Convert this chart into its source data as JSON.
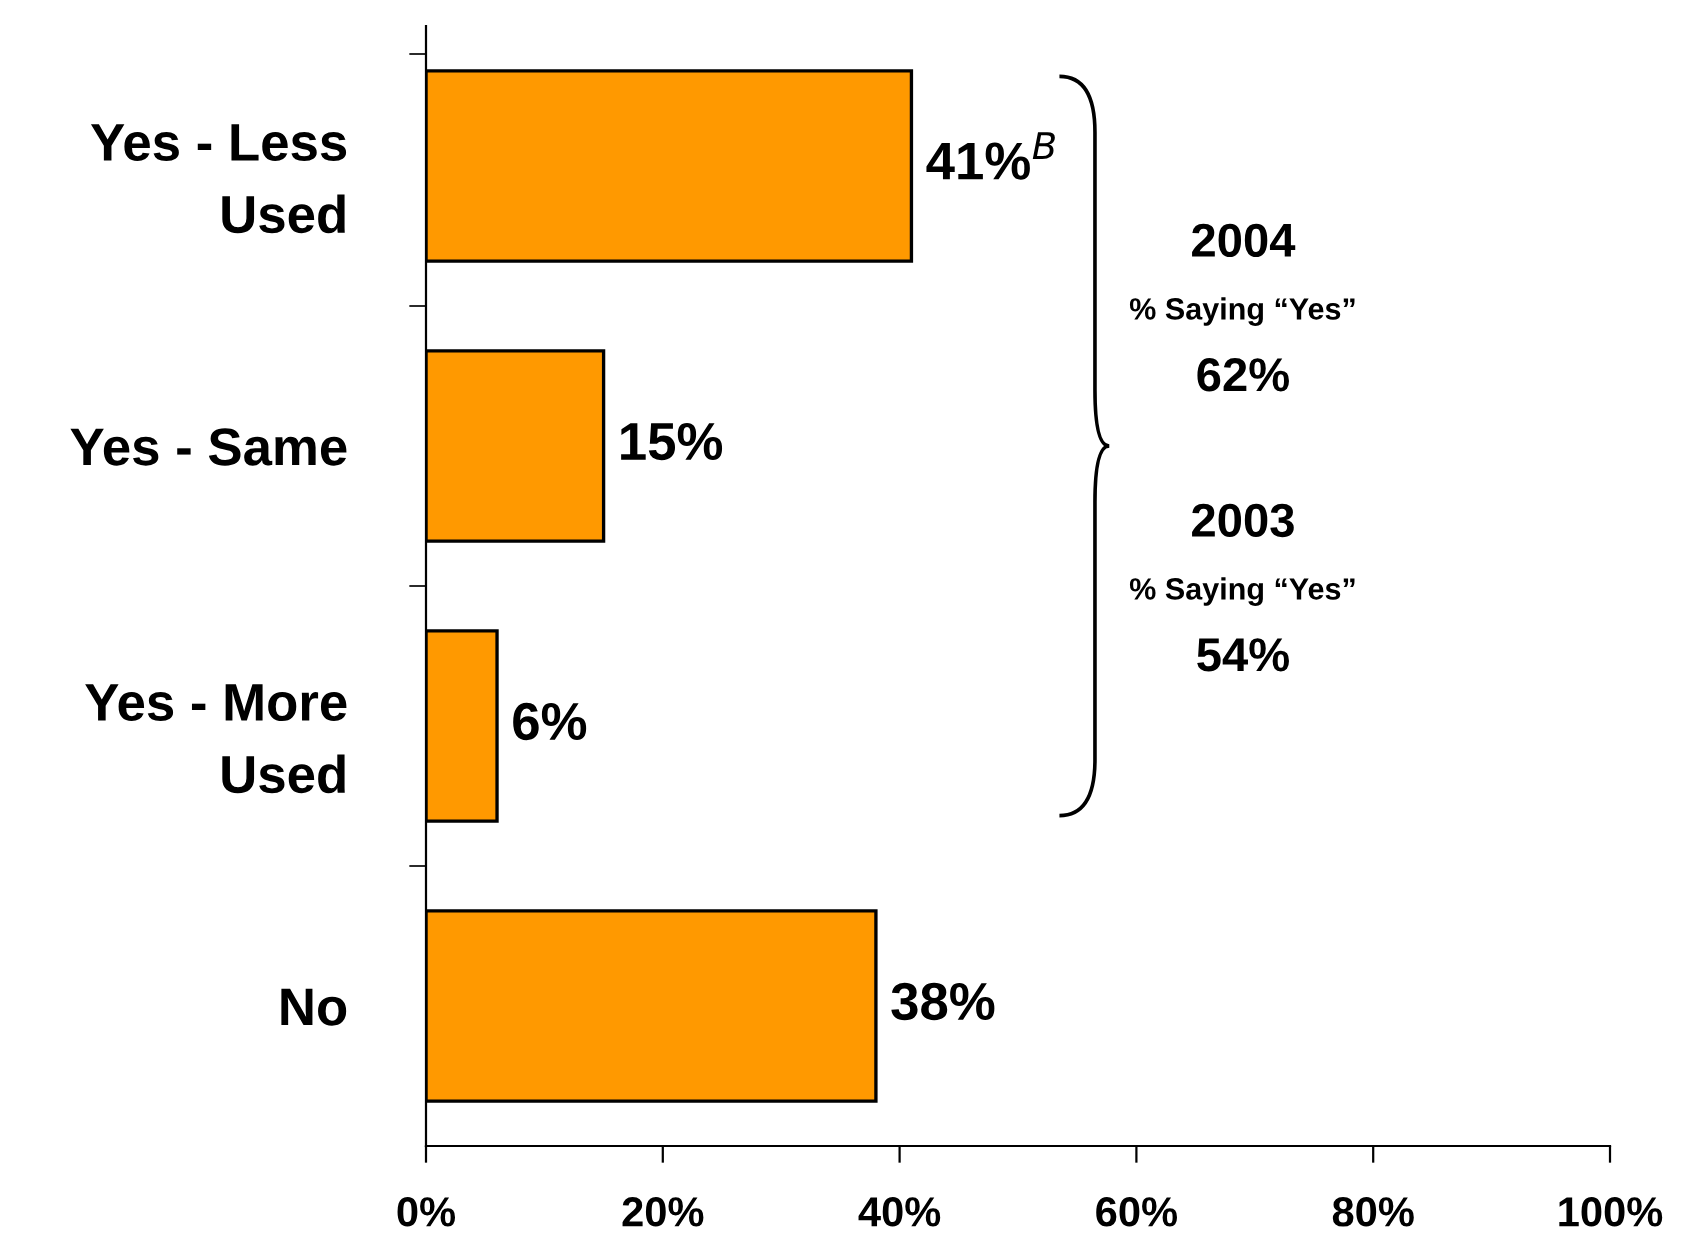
{
  "chart_data": {
    "type": "bar",
    "orientation": "horizontal",
    "categories": [
      "Yes - Less\nUsed",
      "Yes - Same",
      "Yes - More\nUsed",
      "No"
    ],
    "values": [
      41,
      15,
      6,
      38
    ],
    "color": "#ff9900",
    "value_labels": [
      "41%$^{B}$",
      "15%",
      "6%",
      "38%"
    ],
    "xlim": [
      0,
      100
    ],
    "xticks": [
      {
        "value": 0,
        "label": "0%"
      },
      {
        "value": 20,
        "label": "20%"
      },
      {
        "value": 40,
        "label": "40%"
      },
      {
        "value": 60,
        "label": "60%"
      },
      {
        "value": 80,
        "label": "80%"
      },
      {
        "value": 100,
        "label": "100%"
      }
    ],
    "grid": false,
    "legend": false,
    "annotations": [
      "2004\n% Saying “Yes”\n62%",
      "2003\n% Saying “Yes”\n54%"
    ]
  }
}
